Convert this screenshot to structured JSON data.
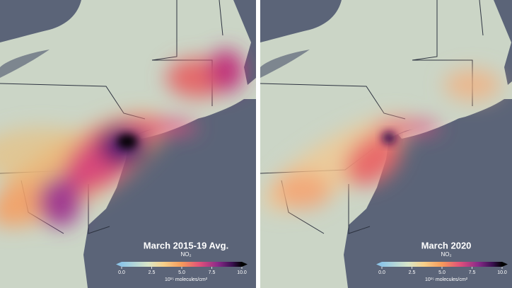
{
  "panels": [
    {
      "title": "March 2015-19 Avg.",
      "quantity": "NO₂",
      "colorbar": {
        "lim": [
          0,
          10
        ],
        "ticks": [
          {
            "value": 0,
            "label": "0.0"
          },
          {
            "value": 2.5,
            "label": "2.5"
          },
          {
            "value": 5,
            "label": "5.0"
          },
          {
            "value": 7.5,
            "label": "7.5"
          },
          {
            "value": 10,
            "label": "10.0"
          }
        ],
        "unit": "10¹⁵ molecules/cm²"
      }
    },
    {
      "title": "March 2020",
      "quantity": "NO₂",
      "colorbar": {
        "lim": [
          0,
          10
        ],
        "ticks": [
          {
            "value": 0,
            "label": "0.0"
          },
          {
            "value": 2.5,
            "label": "2.5"
          },
          {
            "value": 5,
            "label": "5.0"
          },
          {
            "value": 7.5,
            "label": "7.5"
          },
          {
            "value": 10,
            "label": "10.0"
          }
        ],
        "unit": "10¹⁵ molecules/cm²"
      }
    }
  ]
}
